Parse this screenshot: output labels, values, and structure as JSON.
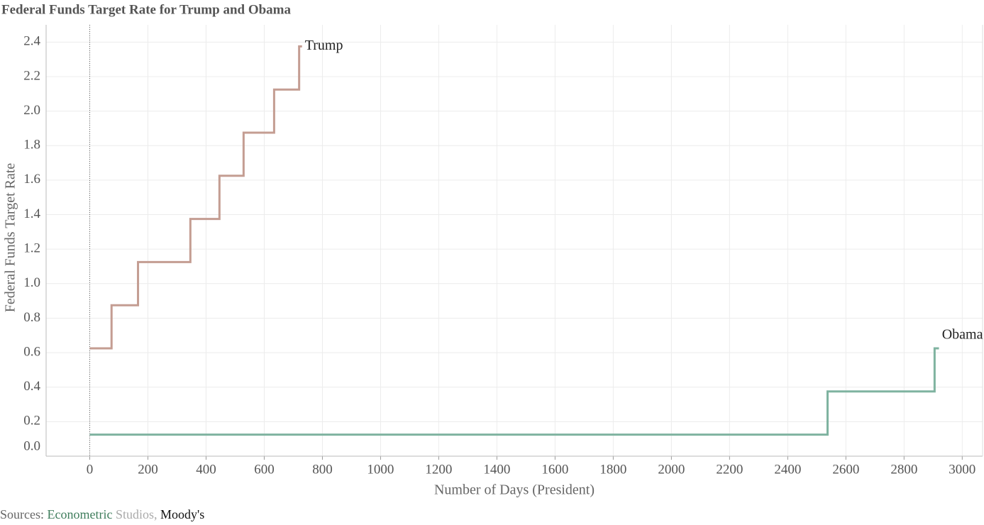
{
  "chart_data": {
    "type": "line",
    "step": "post",
    "title": "Federal Funds Target Rate for Trump and Obama",
    "x_label": "Number of Days (President)",
    "y_label": "Federal Funds Target Rate",
    "source_parts": [
      "Sources:",
      "Econometric",
      "Studios,",
      "Moody's"
    ],
    "xlim": [
      -150,
      3070
    ],
    "ylim": [
      0,
      2.5
    ],
    "xticks": [
      0,
      200,
      400,
      600,
      800,
      1000,
      1200,
      1400,
      1600,
      1800,
      2000,
      2200,
      2400,
      2600,
      2800,
      3000
    ],
    "yticks": [
      {
        "value": 0,
        "label": "0.0"
      },
      0.2,
      0.4,
      0.6,
      0.8,
      {
        "value": 1,
        "label": "1.0"
      },
      1.2,
      1.4,
      1.6,
      1.8,
      {
        "value": 2,
        "label": "2.0"
      },
      2.2,
      2.4
    ],
    "grid": true,
    "series": [
      {
        "name": "Trump",
        "color": "#c49d92",
        "x": [
          0,
          75,
          166,
          346,
          446,
          529,
          634,
          720,
          730
        ],
        "values": [
          0.625,
          0.875,
          1.125,
          1.375,
          1.625,
          1.875,
          2.125,
          2.375,
          2.375
        ]
      },
      {
        "name": "Obama",
        "color": "#7fb3a0",
        "x": [
          0,
          2537,
          2905,
          2920
        ],
        "values": [
          0.125,
          0.375,
          0.625,
          0.625
        ]
      }
    ]
  }
}
